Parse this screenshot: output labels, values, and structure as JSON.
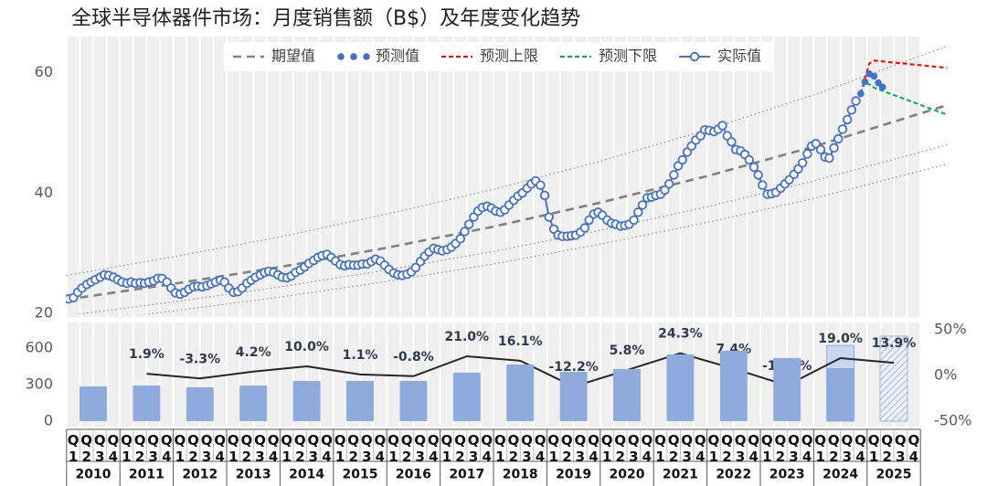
{
  "chart_data": [
    {
      "type": "line",
      "title": "全球半导体器件市场：月度销售额（B$）及年度变化趋势",
      "xlim": [
        2010,
        2026.5
      ],
      "ylim": [
        20,
        66
      ],
      "yticks": [
        20,
        40,
        60
      ],
      "legend": "top",
      "series": [
        {
          "style": "dotted",
          "color": "#8c8c8c",
          "x": [
            2010,
            2012,
            2014,
            2016,
            2018,
            2020,
            2022,
            2024,
            2026.5
          ],
          "values": [
            26.3,
            29.4,
            32.7,
            36.5,
            40.6,
            45.3,
            50.5,
            56.3,
            64.4
          ]
        },
        {
          "style": "dotted",
          "color": "#8c8c8c",
          "x": [
            2010,
            2012,
            2014,
            2016,
            2018,
            2020,
            2022,
            2024,
            2026.5
          ],
          "values": [
            19.6,
            21.9,
            24.4,
            27.2,
            30.3,
            33.8,
            37.7,
            42.0,
            48.0
          ]
        },
        {
          "style": "dotted",
          "color": "#8c8c8c",
          "x": [
            2010,
            2012,
            2014,
            2016,
            2018,
            2020,
            2022,
            2024,
            2026.5
          ],
          "values": [
            18.3,
            20.4,
            22.7,
            25.3,
            28.2,
            31.5,
            35.1,
            39.1,
            44.8
          ]
        },
        {
          "name": "期望值",
          "style": "dashed",
          "color": "#808080",
          "x": [
            2010,
            2012,
            2014,
            2016,
            2018,
            2020,
            2022,
            2024,
            2026.5
          ],
          "values": [
            22.3,
            24.9,
            27.7,
            30.9,
            34.4,
            38.4,
            42.8,
            47.7,
            54.6
          ]
        },
        {
          "name": "预测值",
          "style": "dots",
          "color": "#4472c4",
          "x": [
            2024.88,
            2024.96,
            2025.04,
            2025.13,
            2025.21,
            2025.29
          ],
          "values": [
            56.5,
            58.5,
            59.8,
            59.4,
            58.3,
            57.6
          ]
        },
        {
          "name": "预测上限",
          "style": "dashed-thin",
          "color": "#ff0000",
          "x": [
            2024.88,
            2025.04,
            2025.13,
            2026.5
          ],
          "values": [
            56.5,
            61.5,
            62.0,
            60.8
          ]
        },
        {
          "name": "预测下限",
          "style": "dashed-thin",
          "color": "#00b050",
          "x": [
            2024.88,
            2024.96,
            2025.13,
            2026.5
          ],
          "values": [
            56.5,
            58.5,
            57.5,
            53.0
          ]
        },
        {
          "name": "实际值",
          "style": "line-circle",
          "color": "#4472c4",
          "x": [
            2010.04,
            2010.13,
            2010.21,
            2010.29,
            2010.38,
            2010.46,
            2010.54,
            2010.63,
            2010.71,
            2010.79,
            2010.88,
            2010.96,
            2011.04,
            2011.13,
            2011.21,
            2011.29,
            2011.38,
            2011.46,
            2011.54,
            2011.63,
            2011.71,
            2011.79,
            2011.88,
            2011.96,
            2012.04,
            2012.13,
            2012.21,
            2012.29,
            2012.38,
            2012.46,
            2012.54,
            2012.63,
            2012.71,
            2012.79,
            2012.88,
            2012.96,
            2013.04,
            2013.13,
            2013.21,
            2013.29,
            2013.38,
            2013.46,
            2013.54,
            2013.63,
            2013.71,
            2013.79,
            2013.88,
            2013.96,
            2014.04,
            2014.13,
            2014.21,
            2014.29,
            2014.38,
            2014.46,
            2014.54,
            2014.63,
            2014.71,
            2014.79,
            2014.88,
            2014.96,
            2015.04,
            2015.13,
            2015.21,
            2015.29,
            2015.38,
            2015.46,
            2015.54,
            2015.63,
            2015.71,
            2015.79,
            2015.88,
            2015.96,
            2016.04,
            2016.13,
            2016.21,
            2016.29,
            2016.38,
            2016.46,
            2016.54,
            2016.63,
            2016.71,
            2016.79,
            2016.88,
            2016.96,
            2017.04,
            2017.13,
            2017.21,
            2017.29,
            2017.38,
            2017.46,
            2017.54,
            2017.63,
            2017.71,
            2017.79,
            2017.88,
            2017.96,
            2018.04,
            2018.13,
            2018.21,
            2018.29,
            2018.38,
            2018.46,
            2018.54,
            2018.63,
            2018.71,
            2018.79,
            2018.88,
            2018.96,
            2019.04,
            2019.13,
            2019.21,
            2019.29,
            2019.38,
            2019.46,
            2019.54,
            2019.63,
            2019.71,
            2019.79,
            2019.88,
            2019.96,
            2020.04,
            2020.13,
            2020.21,
            2020.29,
            2020.38,
            2020.46,
            2020.54,
            2020.63,
            2020.71,
            2020.79,
            2020.88,
            2020.96,
            2021.04,
            2021.13,
            2021.21,
            2021.29,
            2021.38,
            2021.46,
            2021.54,
            2021.63,
            2021.71,
            2021.79,
            2021.88,
            2021.96,
            2022.04,
            2022.13,
            2022.21,
            2022.29,
            2022.38,
            2022.46,
            2022.54,
            2022.63,
            2022.71,
            2022.79,
            2022.88,
            2022.96,
            2023.04,
            2023.13,
            2023.21,
            2023.29,
            2023.38,
            2023.46,
            2023.54,
            2023.63,
            2023.71,
            2023.79,
            2023.88,
            2023.96,
            2024.04,
            2024.13,
            2024.21,
            2024.29,
            2024.38,
            2024.46,
            2024.54,
            2024.63,
            2024.71,
            2024.79
          ],
          "values": [
            22.4,
            22.6,
            23.5,
            24.2,
            24.8,
            25.2,
            25.6,
            26.0,
            26.4,
            26.3,
            26.0,
            25.6,
            25.2,
            25.0,
            25.2,
            25.0,
            25.1,
            25.0,
            25.2,
            25.4,
            25.8,
            25.8,
            25.2,
            24.2,
            23.4,
            23.2,
            23.5,
            24.0,
            24.4,
            24.5,
            24.4,
            24.6,
            24.9,
            25.2,
            25.5,
            25.2,
            24.2,
            23.5,
            23.6,
            24.2,
            25.0,
            25.5,
            26.0,
            26.4,
            26.8,
            27.0,
            26.8,
            26.4,
            26.0,
            25.9,
            26.2,
            26.8,
            27.2,
            27.7,
            28.3,
            28.8,
            29.3,
            29.6,
            29.8,
            29.3,
            28.7,
            28.1,
            27.9,
            28.1,
            28.0,
            28.0,
            28.2,
            28.2,
            28.6,
            29.0,
            28.7,
            28.0,
            27.3,
            26.7,
            26.4,
            26.3,
            26.5,
            26.9,
            27.6,
            28.6,
            29.5,
            30.2,
            30.8,
            30.6,
            30.4,
            30.6,
            31.0,
            31.6,
            32.4,
            33.6,
            34.8,
            36.0,
            37.0,
            37.6,
            37.8,
            37.5,
            37.0,
            36.8,
            37.2,
            38.0,
            38.8,
            39.5,
            40.0,
            40.8,
            41.5,
            42.0,
            41.3,
            39.6,
            36.0,
            34.0,
            33.0,
            32.8,
            32.8,
            32.9,
            33.0,
            33.5,
            34.2,
            35.5,
            36.5,
            36.8,
            36.3,
            35.5,
            35.0,
            34.8,
            34.5,
            34.6,
            34.8,
            35.5,
            36.8,
            38.0,
            39.2,
            39.3,
            39.6,
            39.8,
            40.5,
            41.5,
            43.0,
            44.5,
            45.5,
            46.8,
            47.8,
            48.8,
            49.5,
            50.5,
            50.4,
            50.2,
            50.6,
            51.2,
            49.5,
            48.5,
            47.2,
            47.0,
            46.4,
            45.5,
            44.3,
            43.0,
            41.3,
            39.8,
            39.9,
            40.1,
            40.8,
            41.5,
            42.2,
            43.1,
            44.0,
            45.0,
            46.5,
            47.8,
            48.2,
            47.2,
            46.0,
            45.8,
            47.5,
            49.0,
            50.6,
            52.2,
            53.8,
            55.3
          ]
        }
      ]
    },
    {
      "type": "bar",
      "categories": [
        "2010",
        "2011",
        "2012",
        "2013",
        "2014",
        "2015",
        "2016",
        "2017",
        "2018",
        "2019",
        "2020",
        "2021",
        "2022",
        "2023",
        "2024",
        "2025"
      ],
      "quarters": [
        "Q1",
        "Q2",
        "Q3",
        "Q4"
      ],
      "ylim": [
        0,
        750
      ],
      "yticks": [
        0,
        300,
        600
      ],
      "y2lim": [
        -50,
        50
      ],
      "y2ticks": [
        {
          "value": 50,
          "label": "50%"
        },
        {
          "value": 0,
          "label": "0%"
        },
        {
          "value": -50,
          "label": "-50%"
        }
      ],
      "series": [
        {
          "style": "solid",
          "color": "#8faadc",
          "values": [
            285,
            292,
            278,
            292,
            330,
            330,
            330,
            398,
            465,
            405,
            428,
            548,
            578,
            518,
            435,
            null
          ]
        },
        {
          "style": "light",
          "color": "#c9d6ef",
          "values": [
            null,
            null,
            null,
            null,
            null,
            null,
            null,
            null,
            null,
            null,
            null,
            null,
            null,
            null,
            622,
            null
          ]
        },
        {
          "style": "hatch",
          "color": "#9fb5e0",
          "values": [
            null,
            null,
            null,
            null,
            null,
            null,
            null,
            null,
            null,
            null,
            null,
            null,
            null,
            null,
            null,
            698
          ]
        },
        {
          "type": "line",
          "axis": "y2",
          "color": "#262626",
          "values": [
            null,
            1.9,
            -3.3,
            4.2,
            10.0,
            1.1,
            -0.8,
            21.0,
            16.1,
            -12.2,
            5.8,
            24.3,
            7.4,
            -10.9,
            19.0,
            13.9
          ],
          "value_labels": [
            null,
            "1.9%",
            "-3.3%",
            "4.2%",
            "10.0%",
            "1.1%",
            "-0.8%",
            "21.0%",
            "16.1%",
            "-12.2%",
            "5.8%",
            "24.3%",
            "7.4%",
            "-10.9%",
            "19.0%",
            "13.9%"
          ]
        }
      ]
    }
  ]
}
